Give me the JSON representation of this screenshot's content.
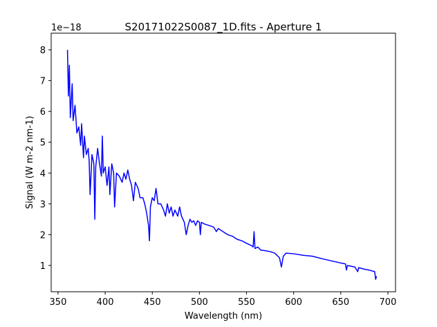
{
  "chart_data": {
    "type": "line",
    "title": "S20171022S0087_1D.fits - Aperture 1",
    "xlabel": "Wavelength (nm)",
    "ylabel": "Signal (W m-2 nm-1)",
    "y_offset_label": "1e−18",
    "x": [
      360,
      361,
      362,
      363,
      365,
      366,
      368,
      370,
      372,
      374,
      375,
      377,
      378,
      380,
      382,
      383,
      384,
      386,
      388,
      389,
      390,
      392,
      394,
      396,
      397,
      398,
      400,
      402,
      404,
      405,
      407,
      409,
      410,
      412,
      415,
      418,
      420,
      422,
      424,
      426,
      428,
      430,
      432,
      435,
      437,
      440,
      442,
      444,
      446,
      447,
      448,
      450,
      452,
      454,
      456,
      459,
      462,
      464,
      466,
      468,
      470,
      472,
      474,
      477,
      479,
      481,
      484,
      486,
      488,
      490,
      492,
      494,
      496,
      498,
      500,
      501,
      502,
      505,
      510,
      515,
      518,
      520,
      525,
      530,
      535,
      540,
      545,
      550,
      555,
      557,
      558,
      559,
      562,
      565,
      570,
      575,
      580,
      585,
      587,
      589,
      592,
      600,
      610,
      620,
      630,
      640,
      650,
      655,
      656,
      657,
      660,
      665,
      668,
      669,
      675,
      680,
      686,
      687,
      688
    ],
    "series": [
      {
        "name": "Aperture 1",
        "color": "#0000ff",
        "values": [
          8.0,
          6.5,
          7.5,
          5.8,
          6.9,
          5.7,
          6.2,
          5.3,
          5.5,
          4.9,
          5.6,
          4.5,
          5.2,
          4.6,
          4.8,
          4.4,
          3.3,
          4.6,
          4.3,
          2.5,
          4.2,
          4.8,
          4.3,
          3.9,
          5.2,
          4.0,
          4.2,
          3.6,
          4.2,
          3.3,
          4.3,
          4.0,
          2.9,
          4.0,
          3.9,
          3.7,
          4.0,
          3.8,
          4.1,
          3.8,
          3.6,
          3.1,
          3.7,
          3.5,
          3.2,
          3.2,
          3.0,
          2.7,
          2.3,
          1.8,
          2.9,
          3.2,
          3.1,
          3.5,
          3.0,
          3.0,
          2.8,
          2.6,
          3.0,
          2.7,
          2.9,
          2.6,
          2.8,
          2.6,
          2.9,
          2.6,
          2.4,
          2.0,
          2.3,
          2.5,
          2.4,
          2.45,
          2.3,
          2.45,
          2.4,
          2.0,
          2.4,
          2.35,
          2.3,
          2.25,
          2.1,
          2.2,
          2.1,
          2.0,
          1.95,
          1.85,
          1.8,
          1.72,
          1.65,
          1.6,
          2.1,
          1.55,
          1.6,
          1.5,
          1.48,
          1.45,
          1.4,
          1.25,
          0.95,
          1.3,
          1.4,
          1.38,
          1.33,
          1.3,
          1.22,
          1.15,
          1.08,
          1.05,
          0.85,
          1.0,
          0.98,
          0.95,
          0.8,
          0.93,
          0.88,
          0.85,
          0.8,
          0.55,
          0.65
        ]
      }
    ],
    "xlim": [
      342.7,
      708.1
    ],
    "xticks": [
      350,
      400,
      450,
      500,
      550,
      600,
      650,
      700
    ],
    "ylim": [
      0.147,
      8.54
    ],
    "yticks": [
      1,
      2,
      3,
      4,
      5,
      6,
      7,
      8
    ],
    "grid": false
  }
}
